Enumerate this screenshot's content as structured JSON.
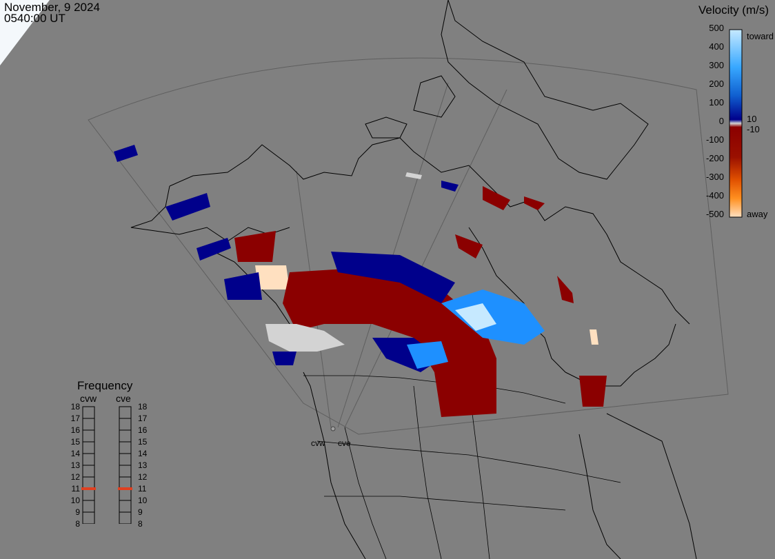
{
  "header": {
    "date": "November, 9 2024",
    "time": "0540:00 UT"
  },
  "colorbar": {
    "title": "Velocity (m/s)",
    "ticks": [
      "500",
      "400",
      "300",
      "200",
      "100",
      "0",
      "-100",
      "-200",
      "-300",
      "-400",
      "-500"
    ],
    "inner_labels": [
      "10",
      "-10"
    ],
    "toward_label": "toward",
    "away_label": "away",
    "colors": {
      "toward_light": "#c6e9ff",
      "toward_mid": "#1e90ff",
      "toward_dark": "#00008b",
      "away_dark": "#8b0000",
      "away_mid": "#e05000",
      "away_light": "#ffe0c0",
      "ground": "#d3d3d3"
    }
  },
  "frequency": {
    "title": "Frequency",
    "radars": [
      "cvw",
      "cve"
    ],
    "ticks": [
      "18",
      "17",
      "16",
      "15",
      "14",
      "13",
      "12",
      "11",
      "10",
      "9",
      "8"
    ],
    "cvw_mhz": 11,
    "cve_mhz": 11,
    "marker_color": "#e04020"
  },
  "sites": [
    "cvw",
    "cve"
  ],
  "map": {
    "background": "#808080",
    "coastline": "#000000",
    "fov": "#5a5a5a"
  }
}
